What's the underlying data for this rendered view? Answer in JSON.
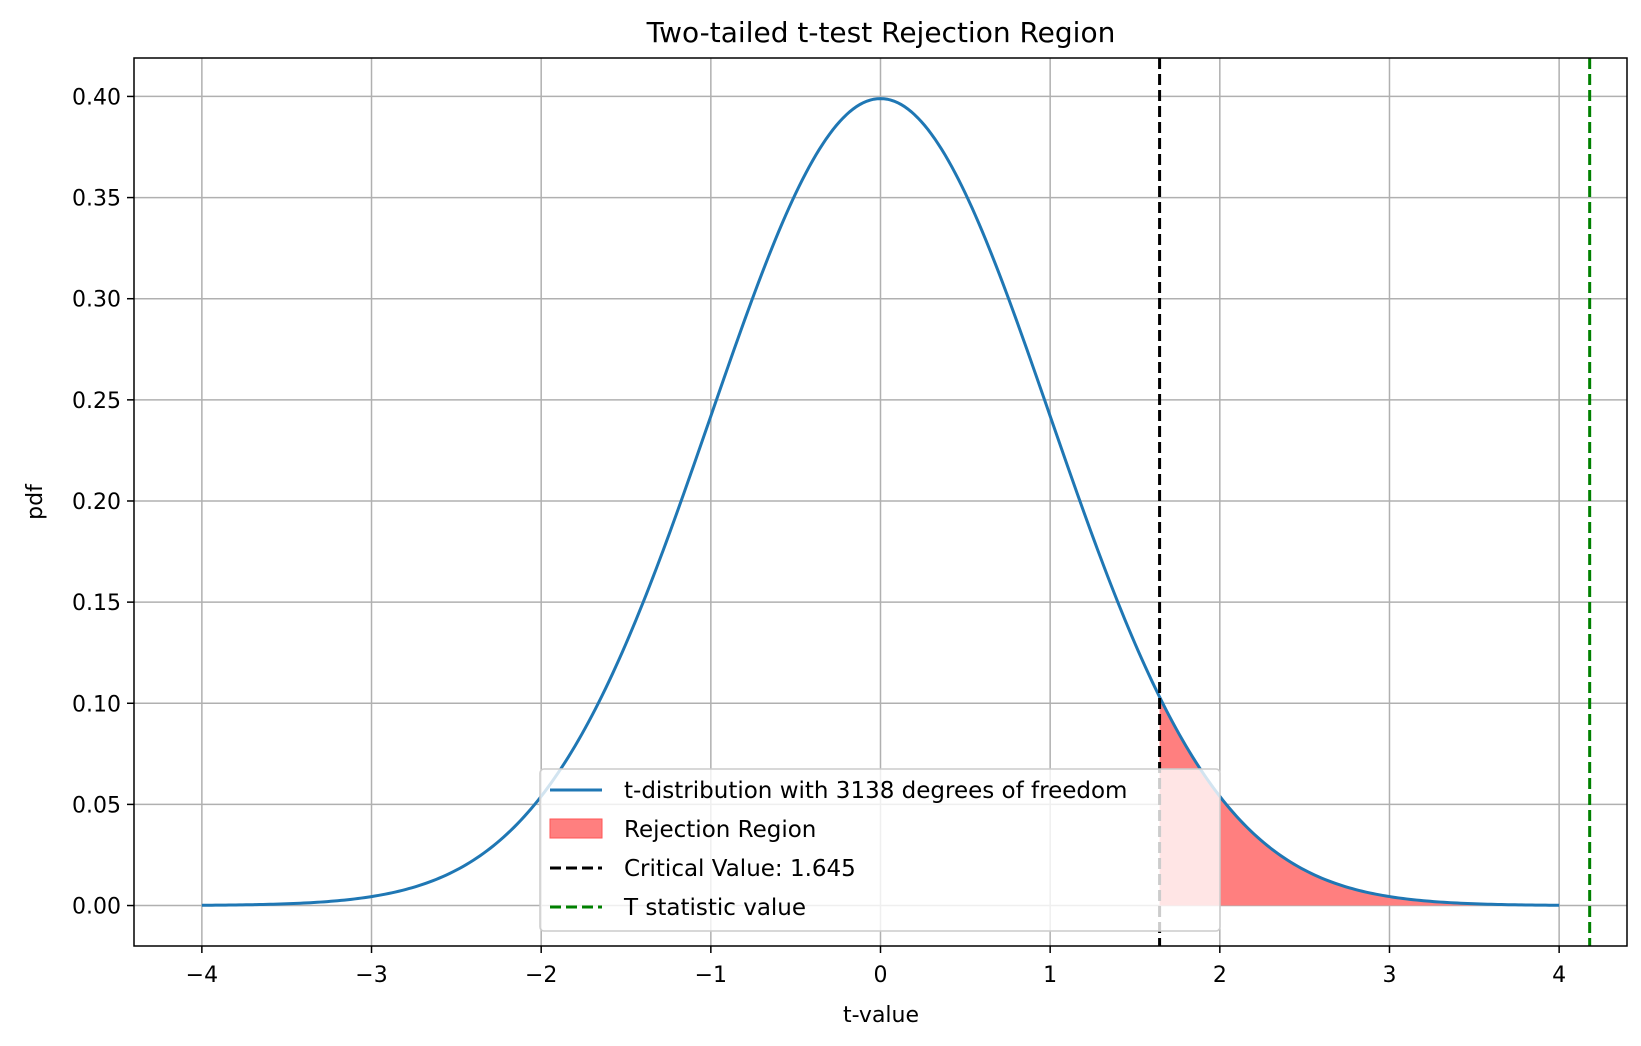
{
  "chart_data": {
    "type": "line",
    "title": "Two-tailed t-test Rejection Region",
    "xlabel": "t-value",
    "ylabel": "pdf",
    "xlim": [
      -4.4,
      4.4
    ],
    "ylim": [
      -0.02,
      0.419
    ],
    "x_ticks": [
      -4,
      -3,
      -2,
      -1,
      0,
      1,
      2,
      3,
      4
    ],
    "x_tick_labels": [
      "−4",
      "−3",
      "−2",
      "−1",
      "0",
      "1",
      "2",
      "3",
      "4"
    ],
    "y_ticks": [
      0.0,
      0.05,
      0.1,
      0.15,
      0.2,
      0.25,
      0.3,
      0.35,
      0.4
    ],
    "y_tick_labels": [
      "0.00",
      "0.05",
      "0.10",
      "0.15",
      "0.20",
      "0.25",
      "0.30",
      "0.35",
      "0.40"
    ],
    "grid": true,
    "legend_position": "lower-center",
    "distribution": {
      "name": "t-distribution with 3138 degrees of freedom",
      "x_range": [
        -4,
        4
      ],
      "color": "#1f77b4"
    },
    "rejection_region": {
      "name": "Rejection Region",
      "x_range": [
        1.645,
        4
      ],
      "color": "#ff7f7f"
    },
    "critical_value": {
      "name": "Critical Value: 1.645",
      "x": 1.645,
      "color": "#000000"
    },
    "t_statistic": {
      "name": "T statistic value",
      "x": 4.18,
      "color": "#008000"
    }
  }
}
